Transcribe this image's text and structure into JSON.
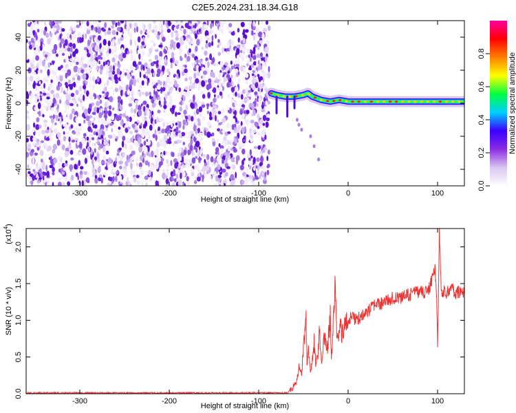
{
  "figure": {
    "title": "C2E5.2024.231.18.34.G18"
  },
  "chart_data": [
    {
      "type": "heatmap",
      "title": "C2E5.2024.231.18.34.G18",
      "xlabel": "Height of straight line (km)",
      "ylabel": "Frequency (Hz)",
      "xlim": [
        -360,
        130
      ],
      "ylim": [
        -50,
        50
      ],
      "xticks": [
        -300,
        -200,
        -100,
        0,
        100
      ],
      "yticks": [
        -40,
        -20,
        0,
        20,
        40
      ],
      "noise_region_x": [
        -360,
        -88
      ],
      "signal_ridge": [
        {
          "x": -86,
          "f": 6
        },
        {
          "x": -80,
          "f": 5
        },
        {
          "x": -70,
          "f": 4
        },
        {
          "x": -60,
          "f": 4
        },
        {
          "x": -50,
          "f": 5
        },
        {
          "x": -45,
          "f": 6
        },
        {
          "x": -40,
          "f": 4
        },
        {
          "x": -30,
          "f": 2
        },
        {
          "x": -20,
          "f": 1
        },
        {
          "x": -10,
          "f": 2
        },
        {
          "x": 0,
          "f": 1
        },
        {
          "x": 20,
          "f": 1
        },
        {
          "x": 40,
          "f": 1
        },
        {
          "x": 60,
          "f": 1
        },
        {
          "x": 80,
          "f": 1
        },
        {
          "x": 100,
          "f": 1
        },
        {
          "x": 130,
          "f": 1
        }
      ],
      "trail_points": [
        {
          "x": -57,
          "f": -10
        },
        {
          "x": -55,
          "f": -13
        },
        {
          "x": -52,
          "f": -16
        },
        {
          "x": -42,
          "f": -20
        },
        {
          "x": -38,
          "f": -26
        },
        {
          "x": -33,
          "f": -34
        }
      ],
      "colorbar": {
        "label": "Normalized spectral amplitude",
        "range": [
          0,
          1
        ],
        "ticks": [
          0.0,
          0.2,
          0.4,
          0.6,
          0.8
        ],
        "tick_labels": [
          "0.0",
          "0.2",
          "0.4",
          "0.6",
          "0.8"
        ],
        "colors": [
          "#ffffff",
          "#d9c6f0",
          "#8a2be2",
          "#3a00ff",
          "#00d0ff",
          "#00ff40",
          "#ffff00",
          "#ff8000",
          "#ff0000",
          "#ff00a0"
        ]
      },
      "grid": false
    },
    {
      "type": "line",
      "xlabel": "Height of straight line (km)",
      "ylabel": "SNR (10 * v/v)",
      "y_multiplier_label": "(x10",
      "y_multiplier_exp": "4",
      "y_multiplier_close": ")",
      "xlim": [
        -360,
        130
      ],
      "ylim": [
        0,
        2.25
      ],
      "xticks": [
        -300,
        -200,
        -100,
        0,
        100
      ],
      "yticks": [
        0.0,
        0.5,
        1.0,
        1.5,
        2.0
      ],
      "ytick_labels": [
        "0.0",
        "0.5",
        "1.0",
        "1.5",
        "2.0"
      ],
      "line_color": "#ee3333",
      "series": [
        {
          "points": [
            [
              -360,
              0.01
            ],
            [
              -300,
              0.01
            ],
            [
              -200,
              0.01
            ],
            [
              -100,
              0.01
            ],
            [
              -68,
              0.01
            ],
            [
              -62,
              0.08
            ],
            [
              -58,
              0.15
            ],
            [
              -55,
              0.35
            ],
            [
              -52,
              0.25
            ],
            [
              -50,
              0.65
            ],
            [
              -48,
              0.85
            ],
            [
              -47,
              1.05
            ],
            [
              -46,
              0.4
            ],
            [
              -44,
              0.6
            ],
            [
              -42,
              0.3
            ],
            [
              -40,
              0.45
            ],
            [
              -38,
              0.7
            ],
            [
              -36,
              0.35
            ],
            [
              -34,
              0.5
            ],
            [
              -32,
              0.85
            ],
            [
              -30,
              0.4
            ],
            [
              -28,
              0.6
            ],
            [
              -26,
              0.9
            ],
            [
              -24,
              0.55
            ],
            [
              -22,
              0.75
            ],
            [
              -20,
              1.05
            ],
            [
              -19,
              0.6
            ],
            [
              -18,
              0.5
            ],
            [
              -16,
              1.2
            ],
            [
              -14,
              1.5
            ],
            [
              -13,
              0.85
            ],
            [
              -11,
              0.7
            ],
            [
              -9,
              0.95
            ],
            [
              -7,
              0.82
            ],
            [
              -5,
              0.9
            ],
            [
              -2,
              0.95
            ],
            [
              0,
              1.0
            ],
            [
              5,
              1.05
            ],
            [
              10,
              1.0
            ],
            [
              15,
              1.08
            ],
            [
              20,
              1.1
            ],
            [
              25,
              1.15
            ],
            [
              30,
              1.2
            ],
            [
              35,
              1.22
            ],
            [
              40,
              1.25
            ],
            [
              45,
              1.28
            ],
            [
              50,
              1.3
            ],
            [
              55,
              1.32
            ],
            [
              60,
              1.3
            ],
            [
              65,
              1.34
            ],
            [
              70,
              1.35
            ],
            [
              75,
              1.38
            ],
            [
              80,
              1.4
            ],
            [
              85,
              1.37
            ],
            [
              90,
              1.42
            ],
            [
              94,
              1.55
            ],
            [
              97,
              1.72
            ],
            [
              99,
              1.3
            ],
            [
              100,
              0.7
            ],
            [
              101,
              1.3
            ],
            [
              102,
              2.25
            ],
            [
              104,
              1.4
            ],
            [
              110,
              1.38
            ],
            [
              115,
              1.45
            ],
            [
              120,
              1.35
            ],
            [
              125,
              1.4
            ],
            [
              130,
              1.36
            ]
          ]
        }
      ],
      "grid": false
    }
  ]
}
